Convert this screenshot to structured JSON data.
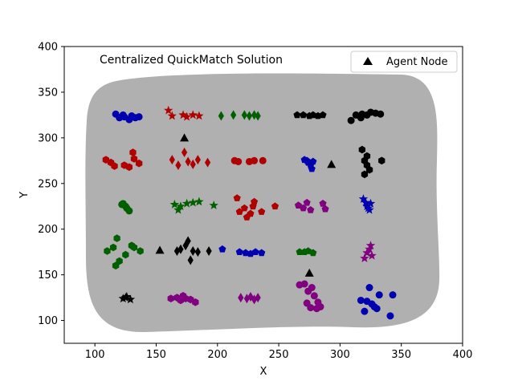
{
  "chart_data": {
    "type": "scatter",
    "title": "Centralized QuickMatch Solution",
    "xlabel": "X",
    "ylabel": "Y",
    "xlim": [
      75,
      400
    ],
    "ylim": [
      75,
      400
    ],
    "xticks": [
      100,
      150,
      200,
      250,
      300,
      350,
      400
    ],
    "yticks": [
      100,
      150,
      200,
      250,
      300,
      350,
      400
    ],
    "legend": {
      "label": "Agent Node",
      "marker": "triangle",
      "placement": "top-right"
    },
    "region_color": "#b0b0b0",
    "colors": {
      "blue": "#0000b0",
      "red": "#b00000",
      "green": "#006000",
      "black": "#000000",
      "purple": "#800080"
    },
    "agent_nodes": [
      {
        "x": 173,
        "y": 300
      },
      {
        "x": 293,
        "y": 271
      },
      {
        "x": 153,
        "y": 177
      },
      {
        "x": 275,
        "y": 152
      }
    ],
    "clusters": [
      {
        "color": "blue",
        "marker": "circle",
        "points": [
          [
            117,
            326
          ],
          [
            120,
            322
          ],
          [
            124,
            323
          ],
          [
            128,
            320
          ],
          [
            130,
            324
          ],
          [
            133,
            322
          ],
          [
            136,
            323
          ],
          [
            123,
            325
          ]
        ]
      },
      {
        "color": "red",
        "marker": "star",
        "points": [
          [
            160,
            330
          ],
          [
            163,
            324
          ],
          [
            172,
            325
          ],
          [
            175,
            323
          ],
          [
            180,
            325
          ],
          [
            185,
            324
          ]
        ]
      },
      {
        "color": "green",
        "marker": "diamond",
        "points": [
          [
            203,
            324
          ],
          [
            213,
            325
          ],
          [
            222,
            325
          ],
          [
            226,
            324
          ],
          [
            230,
            325
          ],
          [
            233,
            324
          ]
        ]
      },
      {
        "color": "black",
        "marker": "pentagon",
        "points": [
          [
            265,
            325
          ],
          [
            270,
            325
          ],
          [
            275,
            324
          ],
          [
            278,
            325
          ],
          [
            282,
            324
          ],
          [
            286,
            325
          ]
        ]
      },
      {
        "color": "black",
        "marker": "circle",
        "points": [
          [
            309,
            319
          ],
          [
            313,
            325
          ],
          [
            318,
            326
          ],
          [
            322,
            325
          ],
          [
            325,
            328
          ],
          [
            329,
            327
          ],
          [
            333,
            326
          ],
          [
            317,
            322
          ]
        ]
      },
      {
        "color": "red",
        "marker": "hexagon",
        "points": [
          [
            109,
            276
          ],
          [
            113,
            273
          ],
          [
            116,
            269
          ],
          [
            124,
            270
          ],
          [
            128,
            268
          ],
          [
            131,
            284
          ],
          [
            132,
            277
          ],
          [
            136,
            272
          ]
        ]
      },
      {
        "color": "red",
        "marker": "diamond",
        "points": [
          [
            163,
            276
          ],
          [
            168,
            270
          ],
          [
            173,
            284
          ],
          [
            176,
            274
          ],
          [
            180,
            271
          ],
          [
            184,
            276
          ],
          [
            192,
            273
          ]
        ]
      },
      {
        "color": "red",
        "marker": "circle",
        "points": [
          [
            214,
            275
          ],
          [
            217,
            274
          ],
          [
            226,
            274
          ],
          [
            230,
            275
          ],
          [
            237,
            275
          ]
        ]
      },
      {
        "color": "blue",
        "marker": "pentagon",
        "points": [
          [
            271,
            276
          ],
          [
            274,
            273
          ],
          [
            276,
            270
          ],
          [
            277,
            266
          ],
          [
            273,
            275
          ],
          [
            278,
            274
          ]
        ]
      },
      {
        "color": "black",
        "marker": "hexagon",
        "points": [
          [
            318,
            287
          ],
          [
            320,
            275
          ],
          [
            322,
            270
          ],
          [
            324,
            265
          ],
          [
            320,
            260
          ],
          [
            334,
            275
          ],
          [
            322,
            280
          ]
        ]
      },
      {
        "color": "green",
        "marker": "circle",
        "points": [
          [
            123,
            228
          ],
          [
            125,
            225
          ],
          [
            128,
            220
          ],
          [
            126,
            223
          ],
          [
            122,
            227
          ]
        ]
      },
      {
        "color": "green",
        "marker": "star",
        "points": [
          [
            165,
            227
          ],
          [
            168,
            221
          ],
          [
            170,
            225
          ],
          [
            175,
            228
          ],
          [
            180,
            229
          ],
          [
            185,
            230
          ],
          [
            197,
            226
          ]
        ]
      },
      {
        "color": "red",
        "marker": "pentagon",
        "points": [
          [
            216,
            234
          ],
          [
            218,
            219
          ],
          [
            222,
            223
          ],
          [
            224,
            213
          ],
          [
            227,
            217
          ],
          [
            229,
            225
          ],
          [
            230,
            230
          ],
          [
            236,
            219
          ],
          [
            247,
            225
          ]
        ]
      },
      {
        "color": "purple",
        "marker": "pentagon",
        "points": [
          [
            266,
            226
          ],
          [
            270,
            223
          ],
          [
            273,
            229
          ],
          [
            276,
            221
          ],
          [
            286,
            228
          ],
          [
            288,
            222
          ]
        ]
      },
      {
        "color": "blue",
        "marker": "star",
        "points": [
          [
            319,
            233
          ],
          [
            321,
            229
          ],
          [
            322,
            225
          ],
          [
            324,
            221
          ],
          [
            325,
            228
          ],
          [
            323,
            223
          ]
        ]
      },
      {
        "color": "green",
        "marker": "hexagon",
        "points": [
          [
            110,
            176
          ],
          [
            115,
            180
          ],
          [
            118,
            190
          ],
          [
            120,
            165
          ],
          [
            125,
            172
          ],
          [
            130,
            182
          ],
          [
            132,
            180
          ],
          [
            137,
            176
          ],
          [
            117,
            160
          ]
        ]
      },
      {
        "color": "black",
        "marker": "diamond",
        "points": [
          [
            167,
            176
          ],
          [
            170,
            178
          ],
          [
            174,
            182
          ],
          [
            176,
            187
          ],
          [
            178,
            166
          ],
          [
            180,
            176
          ],
          [
            184,
            175
          ],
          [
            193,
            176
          ]
        ]
      },
      {
        "color": "blue",
        "marker": "pentagon",
        "points": [
          [
            204,
            178
          ],
          [
            218,
            175
          ],
          [
            223,
            174
          ],
          [
            227,
            173
          ],
          [
            231,
            175
          ],
          [
            236,
            174
          ]
        ]
      },
      {
        "color": "green",
        "marker": "pentagon",
        "points": [
          [
            267,
            175
          ],
          [
            271,
            175
          ],
          [
            274,
            176
          ],
          [
            278,
            174
          ]
        ]
      },
      {
        "color": "purple",
        "marker": "star",
        "points": [
          [
            320,
            168
          ],
          [
            322,
            174
          ],
          [
            324,
            178
          ],
          [
            325,
            182
          ],
          [
            326,
            171
          ]
        ]
      },
      {
        "color": "black",
        "marker": "star",
        "points": [
          [
            123,
            124
          ],
          [
            126,
            126
          ],
          [
            129,
            123
          ],
          [
            125,
            125
          ]
        ]
      },
      {
        "color": "purple",
        "marker": "hexagon",
        "points": [
          [
            162,
            124
          ],
          [
            167,
            125
          ],
          [
            170,
            122
          ],
          [
            174,
            124
          ],
          [
            178,
            123
          ],
          [
            182,
            120
          ],
          [
            172,
            127
          ]
        ]
      },
      {
        "color": "purple",
        "marker": "diamond",
        "points": [
          [
            219,
            125
          ],
          [
            224,
            124
          ],
          [
            227,
            126
          ],
          [
            230,
            123
          ],
          [
            233,
            125
          ]
        ]
      },
      {
        "color": "purple",
        "marker": "circle",
        "points": [
          [
            267,
            139
          ],
          [
            271,
            140
          ],
          [
            274,
            132
          ],
          [
            277,
            136
          ],
          [
            279,
            127
          ],
          [
            282,
            120
          ],
          [
            284,
            115
          ],
          [
            273,
            119
          ],
          [
            276,
            114
          ],
          [
            281,
            113
          ]
        ]
      },
      {
        "color": "blue",
        "marker": "circle",
        "points": [
          [
            317,
            122
          ],
          [
            320,
            110
          ],
          [
            324,
            136
          ],
          [
            326,
            118
          ],
          [
            328,
            115
          ],
          [
            330,
            113
          ],
          [
            332,
            128
          ],
          [
            343,
            128
          ],
          [
            341,
            105
          ],
          [
            322,
            121
          ]
        ]
      }
    ]
  }
}
